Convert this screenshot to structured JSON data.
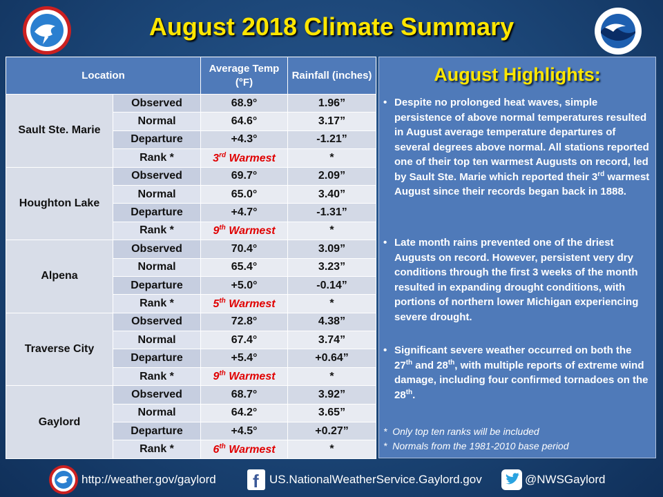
{
  "header": {
    "title": "August 2018 Climate Summary"
  },
  "table": {
    "headers": {
      "location": "Location",
      "temp": "Average Temp (°F)",
      "rain": "Rainfall (inches)"
    },
    "rows": [
      {
        "location": "Sault Ste. Marie",
        "observed": {
          "label": "Observed",
          "temp": "68.9°",
          "rain": "1.96”"
        },
        "normal": {
          "label": "Normal",
          "temp": "64.6°",
          "rain": "3.17”"
        },
        "departure": {
          "label": "Departure",
          "temp": "+4.3°",
          "rain": "-1.21”"
        },
        "rank": {
          "label": "Rank *",
          "num": "3",
          "suffix": "rd",
          "word": "Warmest",
          "rain": "*"
        }
      },
      {
        "location": "Houghton Lake",
        "observed": {
          "label": "Observed",
          "temp": "69.7°",
          "rain": "2.09”"
        },
        "normal": {
          "label": "Normal",
          "temp": "65.0°",
          "rain": "3.40”"
        },
        "departure": {
          "label": "Departure",
          "temp": "+4.7°",
          "rain": "-1.31”"
        },
        "rank": {
          "label": "Rank *",
          "num": "9",
          "suffix": "th",
          "word": "Warmest",
          "rain": "*"
        }
      },
      {
        "location": "Alpena",
        "observed": {
          "label": "Observed",
          "temp": "70.4°",
          "rain": "3.09”"
        },
        "normal": {
          "label": "Normal",
          "temp": "65.4°",
          "rain": "3.23”"
        },
        "departure": {
          "label": "Departure",
          "temp": "+5.0°",
          "rain": "-0.14”"
        },
        "rank": {
          "label": "Rank *",
          "num": "5",
          "suffix": "th",
          "word": "Warmest",
          "rain": "*"
        }
      },
      {
        "location": "Traverse City",
        "observed": {
          "label": "Observed",
          "temp": "72.8°",
          "rain": "4.38”"
        },
        "normal": {
          "label": "Normal",
          "temp": "67.4°",
          "rain": "3.74”"
        },
        "departure": {
          "label": "Departure",
          "temp": "+5.4°",
          "rain": "+0.64”"
        },
        "rank": {
          "label": "Rank *",
          "num": "9",
          "suffix": "th",
          "word": "Warmest",
          "rain": "*"
        }
      },
      {
        "location": "Gaylord",
        "observed": {
          "label": "Observed",
          "temp": "68.7°",
          "rain": "3.92”"
        },
        "normal": {
          "label": "Normal",
          "temp": "64.2°",
          "rain": "3.65”"
        },
        "departure": {
          "label": "Departure",
          "temp": "+4.5°",
          "rain": "+0.27”"
        },
        "rank": {
          "label": "Rank *",
          "num": "6",
          "suffix": "th",
          "word": "Warmest",
          "rain": "*"
        }
      }
    ]
  },
  "highlights": {
    "title": "August Highlights:",
    "b1": {
      "p1": "Despite no prolonged heat waves, simple persistence of above normal temperatures resulted in August average temperature departures of several degrees above normal. All stations reported one of their top ten warmest Augusts on record, led by Sault Ste. Marie which reported their 3",
      "s1": "rd",
      "p2": " warmest August since their records began back in 1888."
    },
    "b2": {
      "p1": "Late month rains prevented one of the driest Augusts on record.  However, persistent very dry conditions through the first 3 weeks of the month resulted in expanding drought conditions, with portions of northern lower Michigan experiencing severe drought."
    },
    "b3": {
      "p1": "Significant severe weather occurred on both the 27",
      "s1": "th",
      "p2": " and 28",
      "s2": "th",
      "p3": ", with multiple reports of extreme wind damage, including four confirmed tornadoes on the 28",
      "s3": "th",
      "p4": "."
    },
    "note1": "Only top ten ranks will be included",
    "note2": "Normals from the 1981-2010 base period",
    "bullet": "•",
    "star": "*"
  },
  "footer": {
    "website": "http://weather.gov/gaylord",
    "facebook": "US.NationalWeatherService.Gaylord.gov",
    "twitter": "@NWSGaylord"
  },
  "colors": {
    "title": "#ffe600",
    "rank": "#e00000",
    "header_bg": "#4f7ab9",
    "panel_bg": "#4f7ab9"
  },
  "icons": {
    "nws": "nws-logo-icon",
    "noaa": "noaa-logo-icon",
    "facebook": "facebook-icon",
    "twitter": "twitter-icon"
  }
}
